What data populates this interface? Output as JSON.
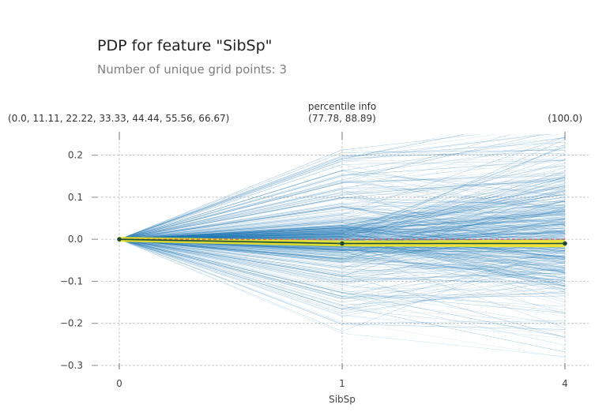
{
  "title": "PDP for feature \"SibSp\"",
  "subtitle": "Number of unique grid points: 3",
  "chart_data": {
    "type": "line",
    "x": [
      0,
      1,
      4
    ],
    "x_tick_labels": [
      "0",
      "1",
      "4"
    ],
    "xlabel": "SibSp",
    "ylabel": "",
    "ylim": [
      -0.3,
      0.25
    ],
    "y_ticks": [
      -0.3,
      -0.2,
      -0.1,
      0.0,
      0.1,
      0.2
    ],
    "y_tick_labels": [
      "−0.3",
      "−0.2",
      "−0.1",
      "0.0",
      "0.1",
      "0.2"
    ],
    "grid": true,
    "percentile_title": "percentile info",
    "percentile_labels": [
      "(0.0, 11.11, 22.22, 33.33, 44.44, 55.56, 66.67)",
      "(77.78, 88.89)",
      "(100.0)"
    ],
    "series": [
      {
        "role": "pdp-average",
        "values": [
          0.0,
          -0.01,
          -0.01
        ],
        "color": "#1a4a3a"
      }
    ],
    "ice_color": "#1f77b4",
    "band_color": "#f7e81c",
    "zero_line_color": "#d9534f"
  }
}
